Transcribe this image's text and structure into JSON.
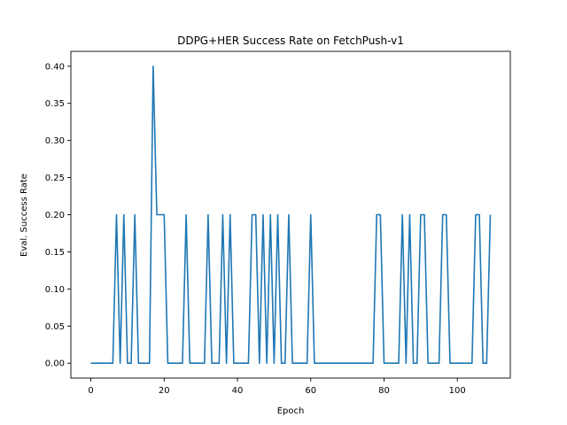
{
  "chart_data": {
    "type": "line",
    "title": "DDPG+HER Success Rate on FetchPush-v1",
    "xlabel": "Epoch",
    "ylabel": "Eval. Success Rate",
    "xlim": [
      -5.45,
      114.45
    ],
    "ylim": [
      -0.02,
      0.42
    ],
    "xticks": [
      0,
      20,
      40,
      60,
      80,
      100
    ],
    "xtick_labels": [
      "0",
      "20",
      "40",
      "60",
      "80",
      "100"
    ],
    "yticks": [
      0.0,
      0.05,
      0.1,
      0.15,
      0.2,
      0.25,
      0.3,
      0.35,
      0.4
    ],
    "ytick_labels": [
      "0.00",
      "0.05",
      "0.10",
      "0.15",
      "0.20",
      "0.25",
      "0.30",
      "0.35",
      "0.40"
    ],
    "grid": false,
    "legend": "none",
    "series": [
      {
        "color": "#1f77b4",
        "x": [
          0,
          1,
          2,
          3,
          4,
          5,
          6,
          7,
          8,
          9,
          10,
          11,
          12,
          13,
          14,
          15,
          16,
          17,
          18,
          19,
          20,
          21,
          22,
          23,
          24,
          25,
          26,
          27,
          28,
          29,
          30,
          31,
          32,
          33,
          34,
          35,
          36,
          37,
          38,
          39,
          40,
          41,
          42,
          43,
          44,
          45,
          46,
          47,
          48,
          49,
          50,
          51,
          52,
          53,
          54,
          55,
          56,
          57,
          58,
          59,
          60,
          61,
          62,
          63,
          64,
          65,
          66,
          67,
          68,
          69,
          70,
          71,
          72,
          73,
          74,
          75,
          76,
          77,
          78,
          79,
          80,
          81,
          82,
          83,
          84,
          85,
          86,
          87,
          88,
          89,
          90,
          91,
          92,
          93,
          94,
          95,
          96,
          97,
          98,
          99,
          100,
          101,
          102,
          103,
          104,
          105,
          106,
          107,
          108,
          109
        ],
        "y": [
          0,
          0,
          0,
          0,
          0,
          0,
          0,
          0.2,
          0,
          0.2,
          0,
          0,
          0.2,
          0,
          0,
          0,
          0,
          0.4,
          0.2,
          0.2,
          0.2,
          0,
          0,
          0,
          0,
          0,
          0.2,
          0,
          0,
          0,
          0,
          0,
          0.2,
          0,
          0,
          0,
          0.2,
          0,
          0.2,
          0,
          0,
          0,
          0,
          0,
          0.2,
          0.2,
          0,
          0.2,
          0,
          0.2,
          0,
          0.2,
          0,
          0,
          0.2,
          0,
          0,
          0,
          0,
          0,
          0.2,
          0,
          0,
          0,
          0,
          0,
          0,
          0,
          0,
          0,
          0,
          0,
          0,
          0,
          0,
          0,
          0,
          0,
          0.2,
          0.2,
          0,
          0,
          0,
          0,
          0,
          0.2,
          0,
          0.2,
          0,
          0,
          0.2,
          0.2,
          0,
          0,
          0,
          0,
          0.2,
          0.2,
          0,
          0,
          0,
          0,
          0,
          0,
          0,
          0.2,
          0.2,
          0,
          0,
          0.2
        ]
      }
    ]
  }
}
